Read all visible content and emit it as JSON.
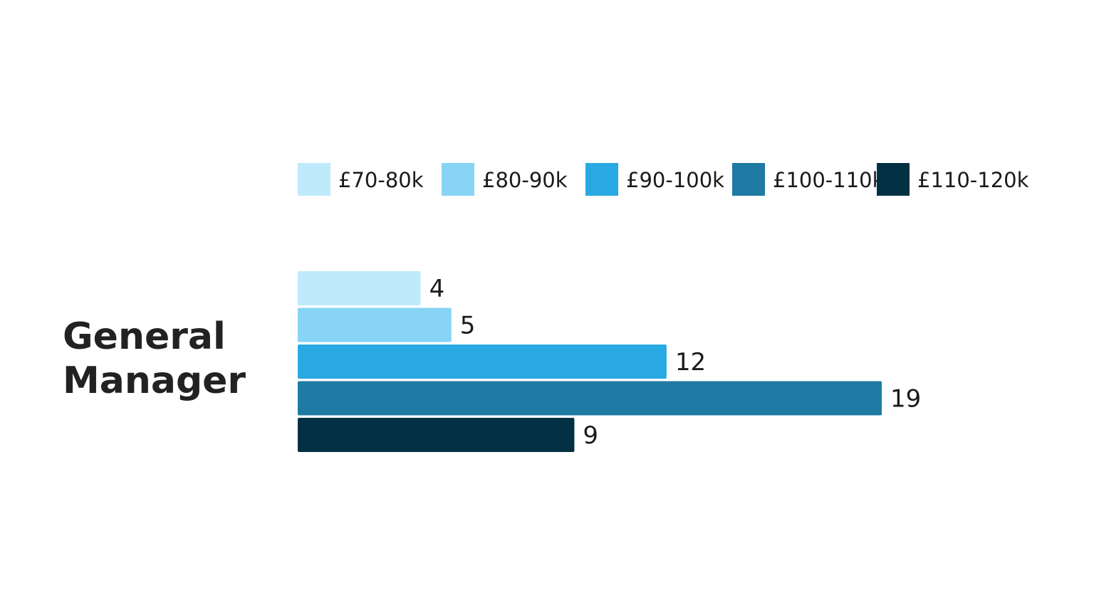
{
  "chart_data": {
    "type": "bar",
    "orientation": "horizontal",
    "category": "General Manager",
    "category_lines": [
      "General",
      "Manager"
    ],
    "series": [
      {
        "name": "£70-80k",
        "color": "#bfeafc",
        "value": 4
      },
      {
        "name": "£80-90k",
        "color": "#87d4f5",
        "value": 5
      },
      {
        "name": "£90-100k",
        "color": "#28a9e1",
        "value": 12
      },
      {
        "name": "£100-110k",
        "color": "#1f7aa4",
        "value": 19
      },
      {
        "name": "£110-120k",
        "color": "#033042",
        "value": 9
      }
    ],
    "xlim": [
      0,
      19
    ],
    "legend_position": "top",
    "grid": false,
    "data_labels": true
  }
}
